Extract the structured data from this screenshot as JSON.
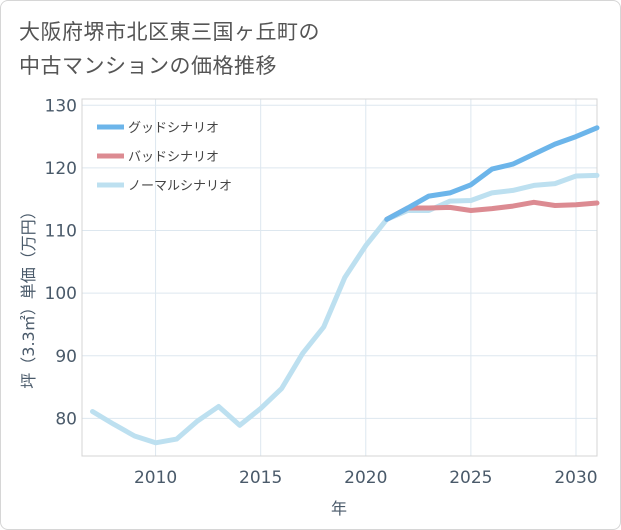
{
  "title_lines": [
    "大阪府堺市北区東三国ヶ丘町の",
    "中古マンションの価格推移"
  ],
  "chart_data": {
    "type": "line",
    "xlabel": "年",
    "ylabel": "坪（3.3㎡）単価（万円）",
    "xlim": [
      2006.5,
      2031
    ],
    "ylim": [
      74,
      131
    ],
    "x_ticks": [
      2010,
      2015,
      2020,
      2025,
      2030
    ],
    "y_ticks": [
      80,
      90,
      100,
      110,
      120,
      130
    ],
    "grid": true,
    "legend_position": "top-left",
    "series": [
      {
        "name": "グッドシナリオ",
        "color": "#6cb5ea",
        "x": [
          2021,
          2022,
          2023,
          2024,
          2025,
          2026,
          2027,
          2028,
          2029,
          2030,
          2031
        ],
        "y": [
          111.8,
          113.6,
          115.5,
          116.0,
          117.3,
          119.8,
          120.6,
          122.2,
          123.8,
          125.0,
          126.4
        ]
      },
      {
        "name": "バッドシナリオ",
        "color": "#dc8b92",
        "x": [
          2021,
          2022,
          2023,
          2024,
          2025,
          2026,
          2027,
          2028,
          2029,
          2030,
          2031
        ],
        "y": [
          111.8,
          113.6,
          113.6,
          113.7,
          113.2,
          113.5,
          113.9,
          114.5,
          114.0,
          114.1,
          114.4
        ]
      },
      {
        "name": "ノーマルシナリオ",
        "color": "#bde0f0",
        "x": [
          2007,
          2008,
          2009,
          2010,
          2011,
          2012,
          2013,
          2014,
          2015,
          2016,
          2017,
          2018,
          2019,
          2020,
          2021,
          2022,
          2023,
          2024,
          2025,
          2026,
          2027,
          2028,
          2029,
          2030,
          2031
        ],
        "y": [
          81.1,
          79.1,
          77.2,
          76.1,
          76.7,
          79.6,
          81.9,
          78.9,
          81.6,
          84.8,
          90.4,
          94.6,
          102.5,
          107.6,
          111.8,
          113.2,
          113.2,
          114.7,
          114.8,
          116.0,
          116.4,
          117.2,
          117.5,
          118.7,
          118.8
        ]
      }
    ]
  }
}
